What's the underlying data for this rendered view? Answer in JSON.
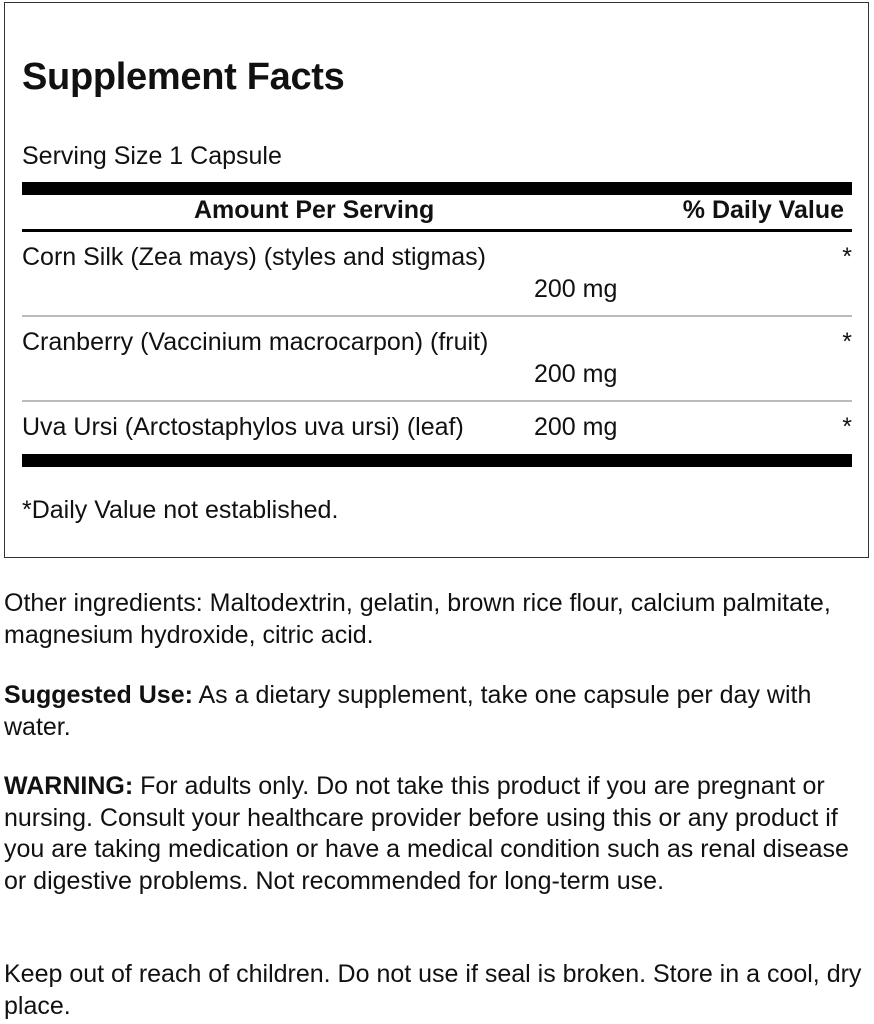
{
  "facts": {
    "title": "Supplement Facts",
    "serving_size": "Serving Size 1 Capsule",
    "header_amount": "Amount Per Serving",
    "header_dv": "% Daily Value",
    "rows": [
      {
        "name": "Corn Silk (Zea mays) (styles and stigmas)",
        "amount": "200 mg",
        "dv": "*"
      },
      {
        "name": "Cranberry (Vaccinium macrocarpon) (fruit)",
        "amount": "200 mg",
        "dv": "*"
      },
      {
        "name": "Uva Ursi (Arctostaphylos uva ursi) (leaf)",
        "amount": "200 mg",
        "dv": "*"
      }
    ],
    "footnote": "*Daily Value not established."
  },
  "other_ingredients": "Other ingredients: Maltodextrin, gelatin, brown rice flour, calcium palmitate, magnesium hydroxide, citric acid.",
  "suggested_use": {
    "label": "Suggested Use:",
    "text": " As a dietary supplement, take one capsule per day with water."
  },
  "warning": {
    "label": "WARNING:",
    "text": " For adults only. Do not take this product if you are pregnant or nursing. Consult your healthcare provider before using this or any product if you are taking medication or have a medical condition such as renal disease or digestive problems. Not recommended for long-term use."
  },
  "storage": "Keep out of reach of children. Do not use if seal is broken. Store in a cool, dry place."
}
